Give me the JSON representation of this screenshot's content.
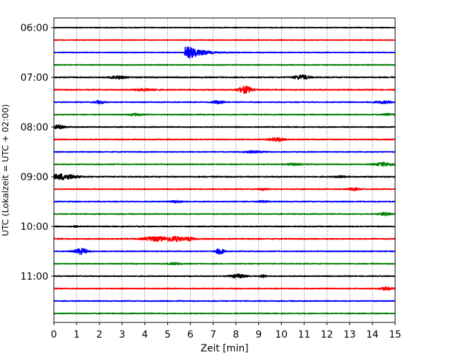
{
  "chart_data": {
    "type": "line",
    "title": "",
    "xlabel": "Zeit  [min]",
    "ylabel": "UTC (Lokalzeit = UTC + 02:00)",
    "xlim": [
      0,
      15
    ],
    "x_ticks": [
      0,
      1,
      2,
      3,
      4,
      5,
      6,
      7,
      8,
      9,
      10,
      11,
      12,
      13,
      14,
      15
    ],
    "y_ticks": [
      "06:00",
      "07:00",
      "08:00",
      "09:00",
      "10:00",
      "11:00"
    ],
    "row_interval_min": 15,
    "grid": {
      "x": true,
      "style": "dotted"
    },
    "color_cycle": [
      "#000000",
      "#ff0000",
      "#0000ff",
      "#008000"
    ],
    "traces": [
      {
        "start": "06:00",
        "color": "#000000",
        "amp": 0.5,
        "events": []
      },
      {
        "start": "06:15",
        "color": "#ff0000",
        "amp": 0.5,
        "events": []
      },
      {
        "start": "06:30",
        "color": "#0000ff",
        "amp": 0.5,
        "events": [
          {
            "t": 5.8,
            "amp": 8,
            "dur": 1.4,
            "shape": "quake"
          }
        ]
      },
      {
        "start": "06:45",
        "color": "#008000",
        "amp": 0.6,
        "events": []
      },
      {
        "start": "07:00",
        "color": "#000000",
        "amp": 0.7,
        "events": [
          {
            "t": 2.8,
            "amp": 2,
            "dur": 0.6
          },
          {
            "t": 10.9,
            "amp": 3,
            "dur": 0.6
          }
        ]
      },
      {
        "start": "07:15",
        "color": "#ff0000",
        "amp": 0.7,
        "events": [
          {
            "t": 4.0,
            "amp": 1.5,
            "dur": 0.8
          },
          {
            "t": 8.4,
            "amp": 5,
            "dur": 0.5
          }
        ]
      },
      {
        "start": "07:30",
        "color": "#0000ff",
        "amp": 0.6,
        "events": [
          {
            "t": 2.0,
            "amp": 2,
            "dur": 0.4
          },
          {
            "t": 7.2,
            "amp": 2,
            "dur": 0.5
          },
          {
            "t": 14.5,
            "amp": 1.5,
            "dur": 0.8
          }
        ]
      },
      {
        "start": "07:45",
        "color": "#008000",
        "amp": 0.6,
        "events": [
          {
            "t": 3.6,
            "amp": 1.5,
            "dur": 0.5
          },
          {
            "t": 14.7,
            "amp": 1.5,
            "dur": 0.4
          }
        ]
      },
      {
        "start": "08:00",
        "color": "#000000",
        "amp": 0.6,
        "events": [
          {
            "t": 0.2,
            "amp": 2.5,
            "dur": 0.5
          }
        ]
      },
      {
        "start": "08:15",
        "color": "#ff0000",
        "amp": 0.6,
        "events": [
          {
            "t": 9.8,
            "amp": 2.5,
            "dur": 0.6
          }
        ]
      },
      {
        "start": "08:30",
        "color": "#0000ff",
        "amp": 0.6,
        "events": [
          {
            "t": 8.8,
            "amp": 1.2,
            "dur": 0.8
          }
        ]
      },
      {
        "start": "08:45",
        "color": "#008000",
        "amp": 0.6,
        "events": [
          {
            "t": 10.5,
            "amp": 1.2,
            "dur": 0.6
          },
          {
            "t": 14.5,
            "amp": 2.5,
            "dur": 0.7
          }
        ]
      },
      {
        "start": "09:00",
        "color": "#000000",
        "amp": 0.7,
        "events": [
          {
            "t": 0.4,
            "amp": 4,
            "dur": 1.0
          },
          {
            "t": 12.6,
            "amp": 1.2,
            "dur": 0.4
          }
        ]
      },
      {
        "start": "09:15",
        "color": "#ff0000",
        "amp": 0.6,
        "events": [
          {
            "t": 9.2,
            "amp": 1.2,
            "dur": 0.4
          },
          {
            "t": 13.2,
            "amp": 1.5,
            "dur": 0.5
          }
        ]
      },
      {
        "start": "09:30",
        "color": "#0000ff",
        "amp": 0.6,
        "events": [
          {
            "t": 5.4,
            "amp": 1.5,
            "dur": 0.4
          },
          {
            "t": 9.2,
            "amp": 1.2,
            "dur": 0.4
          }
        ]
      },
      {
        "start": "09:45",
        "color": "#008000",
        "amp": 0.6,
        "events": [
          {
            "t": 14.6,
            "amp": 2,
            "dur": 0.5
          }
        ]
      },
      {
        "start": "10:00",
        "color": "#000000",
        "amp": 0.6,
        "events": [
          {
            "t": 0.9,
            "amp": 1,
            "dur": 0.3
          }
        ]
      },
      {
        "start": "10:15",
        "color": "#ff0000",
        "amp": 0.7,
        "events": [
          {
            "t": 4.4,
            "amp": 3,
            "dur": 0.8
          },
          {
            "t": 5.3,
            "amp": 3.5,
            "dur": 0.8
          },
          {
            "t": 6.0,
            "amp": 2,
            "dur": 0.3
          }
        ]
      },
      {
        "start": "10:30",
        "color": "#0000ff",
        "amp": 0.6,
        "events": [
          {
            "t": 1.2,
            "amp": 4,
            "dur": 0.5
          },
          {
            "t": 7.3,
            "amp": 4.5,
            "dur": 0.3
          }
        ]
      },
      {
        "start": "10:45",
        "color": "#008000",
        "amp": 0.6,
        "events": [
          {
            "t": 5.3,
            "amp": 1.2,
            "dur": 0.5
          }
        ]
      },
      {
        "start": "11:00",
        "color": "#000000",
        "amp": 0.6,
        "events": [
          {
            "t": 8.1,
            "amp": 2.5,
            "dur": 0.6
          },
          {
            "t": 9.2,
            "amp": 1.5,
            "dur": 0.3
          }
        ]
      },
      {
        "start": "11:15",
        "color": "#ff0000",
        "amp": 0.6,
        "events": [
          {
            "t": 14.6,
            "amp": 2,
            "dur": 0.5
          }
        ]
      },
      {
        "start": "11:30",
        "color": "#0000ff",
        "amp": 0.6,
        "events": []
      },
      {
        "start": "11:45",
        "color": "#008000",
        "amp": 0.6,
        "events": []
      }
    ]
  }
}
